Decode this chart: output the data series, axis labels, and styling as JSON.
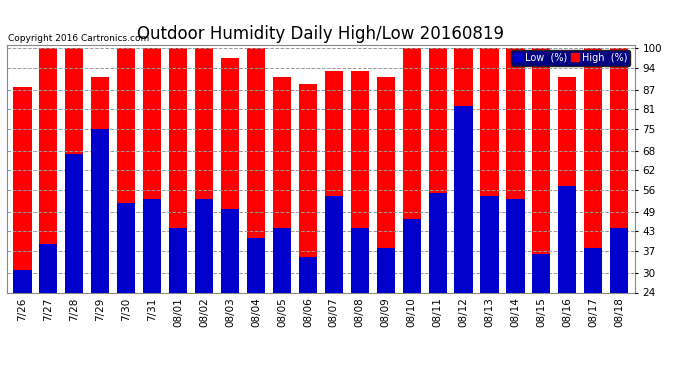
{
  "title": "Outdoor Humidity Daily High/Low 20160819",
  "copyright": "Copyright 2016 Cartronics.com",
  "dates": [
    "7/26",
    "7/27",
    "7/28",
    "7/29",
    "7/30",
    "7/31",
    "08/01",
    "08/02",
    "08/03",
    "08/04",
    "08/05",
    "08/06",
    "08/07",
    "08/08",
    "08/09",
    "08/10",
    "08/11",
    "08/12",
    "08/13",
    "08/14",
    "08/15",
    "08/16",
    "08/17",
    "08/18"
  ],
  "high": [
    88,
    100,
    100,
    91,
    100,
    100,
    100,
    100,
    97,
    100,
    91,
    89,
    93,
    93,
    91,
    100,
    100,
    100,
    100,
    100,
    100,
    91,
    100,
    100
  ],
  "low": [
    31,
    39,
    67,
    75,
    52,
    53,
    44,
    53,
    50,
    41,
    44,
    35,
    54,
    44,
    38,
    47,
    55,
    82,
    54,
    53,
    36,
    57,
    38,
    44
  ],
  "high_color": "#ff0000",
  "low_color": "#0000cc",
  "bg_color": "#ffffff",
  "grid_color": "#999999",
  "ylim": [
    24,
    101
  ],
  "yticks": [
    24,
    30,
    37,
    43,
    49,
    56,
    62,
    68,
    75,
    81,
    87,
    94,
    100
  ],
  "bar_width": 0.7,
  "title_fontsize": 12,
  "tick_fontsize": 7.5,
  "legend_low_label": "Low  (%)",
  "legend_high_label": "High  (%)"
}
